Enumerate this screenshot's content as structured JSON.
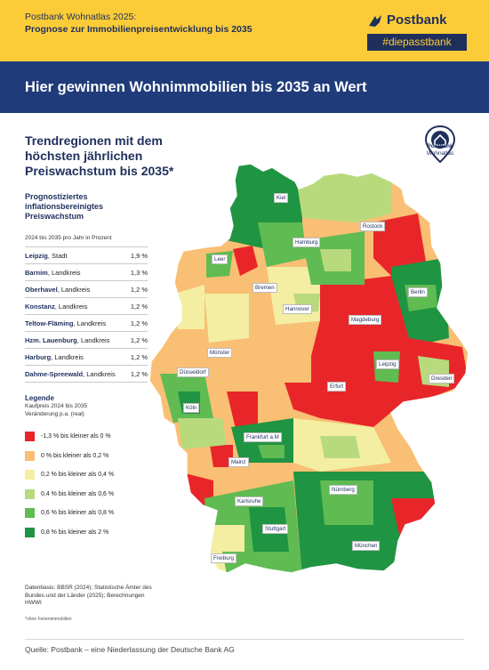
{
  "header": {
    "line1": "Postbank Wohnatlas 2025:",
    "line2": "Prognose zur Immobilienpreisentwicklung bis 2035",
    "brand": "Postbank",
    "tagline": "#diepasstbank",
    "brand_color": "#1f2f5c",
    "accent_color": "#fccc38"
  },
  "banner": {
    "text": "Hier gewinnen Wohnimmobilien bis 2035 an Wert",
    "color": "#1f3b7a"
  },
  "subtitle": "Trendregionen mit dem höchsten jährlichen Preiswachstum bis 2035*",
  "badge": {
    "line1": "Postbank",
    "line2": "Wohnatlas",
    "icon": "house-pin-icon"
  },
  "ranking": {
    "title": "Prognostiziertes inflationsbereinigtes Preiswachstum",
    "subtitle": "2024 bis 2035 pro Jahr in Prozent",
    "rows": [
      {
        "name": "Leipzig",
        "type": "Stadt",
        "value": "1,9 %"
      },
      {
        "name": "Barnim",
        "type": "Landkreis",
        "value": "1,3 %"
      },
      {
        "name": "Oberhavel",
        "type": "Landkreis",
        "value": "1,2 %"
      },
      {
        "name": "Konstanz",
        "type": "Landkreis",
        "value": "1,2 %"
      },
      {
        "name": "Teltow-Fläming",
        "type": "Landkreis",
        "value": "1,2 %"
      },
      {
        "name": "Hzm. Lauenburg",
        "type": "Landkreis",
        "value": "1,2 %"
      },
      {
        "name": "Harburg",
        "type": "Landkreis",
        "value": "1,2 %"
      },
      {
        "name": "Dahme-Spreewald",
        "type": "Landkreis",
        "value": "1,2 %"
      }
    ]
  },
  "legend": {
    "title": "Legende",
    "sub1": "Kaufpreis 2024 bis 2035",
    "sub2": "Veränderung p.a. (real)",
    "items": [
      {
        "label": "-1,3 % bis kleiner als 0 %",
        "color": "#e8262a"
      },
      {
        "label": "0 % bis kleiner als 0,2 %",
        "color": "#f9bf74"
      },
      {
        "label": "0,2 % bis kleiner als 0,4 %",
        "color": "#f3eea2"
      },
      {
        "label": "0,4 % bis kleiner als 0,6 %",
        "color": "#b8da7d"
      },
      {
        "label": "0,6 % bis kleiner als 0,8 %",
        "color": "#5fbb52"
      },
      {
        "label": "0,8 % bis kleiner als 2 %",
        "color": "#1f9442"
      }
    ]
  },
  "source": "Datenbasis: BBSR (2024); Statistische Ämter des Bundes und der Länder (2025); Berechnungen HWWI",
  "note": "*ohne Ferienimmobilien",
  "footer": "Quelle: Postbank – eine Niederlassung der Deutsche Bank AG",
  "cities": [
    "Kiel",
    "Rostock",
    "Hamburg",
    "Leer",
    "Bremen",
    "Berlin",
    "Hannover",
    "Magdeburg",
    "Münster",
    "Düsseldorf",
    "Leipzig",
    "Dresden",
    "Erfurt",
    "Köln",
    "Frankfurt a.M",
    "Mainz",
    "Nürnberg",
    "Karlsruhe",
    "Stuttgart",
    "München",
    "Freiburg"
  ]
}
